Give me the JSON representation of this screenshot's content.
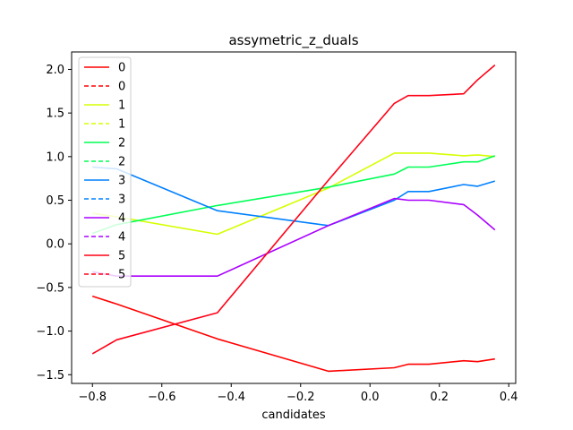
{
  "chart_data": {
    "type": "line",
    "title": "assymetric_z_duals",
    "xlabel": "candidates",
    "ylabel": "",
    "xlim": [
      -0.86,
      0.42
    ],
    "ylim": [
      -1.6,
      2.2
    ],
    "xticks": [
      -0.8,
      -0.6,
      -0.4,
      -0.2,
      0.0,
      0.2,
      0.4
    ],
    "xtick_labels": [
      "−0.8",
      "−0.6",
      "−0.4",
      "−0.2",
      "0.0",
      "0.2",
      "0.4"
    ],
    "yticks": [
      -1.5,
      -1.0,
      -0.5,
      0.0,
      0.5,
      1.0,
      1.5,
      2.0
    ],
    "ytick_labels": [
      "−1.5",
      "−1.0",
      "−0.5",
      "0.0",
      "0.5",
      "1.0",
      "1.5",
      "2.0"
    ],
    "grid": false,
    "legend": {
      "placement": "top-left",
      "entries": [
        {
          "label": "0",
          "color": "#ff0000",
          "style": "solid"
        },
        {
          "label": "0",
          "color": "#ff0000",
          "style": "dashed"
        },
        {
          "label": "1",
          "color": "#d5ff00",
          "style": "solid"
        },
        {
          "label": "1",
          "color": "#d5ff00",
          "style": "dashed"
        },
        {
          "label": "2",
          "color": "#00ff55",
          "style": "solid"
        },
        {
          "label": "2",
          "color": "#00ff55",
          "style": "dashed"
        },
        {
          "label": "3",
          "color": "#0080ff",
          "style": "solid"
        },
        {
          "label": "3",
          "color": "#0080ff",
          "style": "dashed"
        },
        {
          "label": "4",
          "color": "#aa00ff",
          "style": "solid"
        },
        {
          "label": "4",
          "color": "#aa00ff",
          "style": "dashed"
        },
        {
          "label": "5",
          "color": "#ff0015",
          "style": "solid"
        },
        {
          "label": "5",
          "color": "#ff0015",
          "style": "dashed"
        }
      ]
    },
    "series": [
      {
        "name": "0",
        "color": "#ff0000",
        "style": "solid",
        "x": [
          -0.8,
          -0.73,
          -0.44,
          -0.12,
          0.07,
          0.11,
          0.17,
          0.27,
          0.31,
          0.36
        ],
        "y": [
          -0.6,
          -0.69,
          -1.09,
          -1.46,
          -1.42,
          -1.38,
          -1.38,
          -1.34,
          -1.35,
          -1.32
        ]
      },
      {
        "name": "1",
        "color": "#d5ff00",
        "style": "solid",
        "x": [
          -0.8,
          -0.73,
          -0.44,
          -0.12,
          0.07,
          0.11,
          0.17,
          0.27,
          0.31,
          0.36
        ],
        "y": [
          0.35,
          0.31,
          0.11,
          0.64,
          1.04,
          1.04,
          1.04,
          1.01,
          1.02,
          1.0
        ]
      },
      {
        "name": "2",
        "color": "#00ff55",
        "style": "solid",
        "x": [
          -0.8,
          -0.73,
          -0.44,
          -0.12,
          0.07,
          0.11,
          0.17,
          0.27,
          0.31,
          0.36
        ],
        "y": [
          0.12,
          0.22,
          0.44,
          0.65,
          0.8,
          0.88,
          0.88,
          0.94,
          0.94,
          1.01
        ]
      },
      {
        "name": "3",
        "color": "#0080ff",
        "style": "solid",
        "x": [
          -0.8,
          -0.73,
          -0.44,
          -0.12,
          0.07,
          0.11,
          0.17,
          0.27,
          0.31,
          0.36
        ],
        "y": [
          0.88,
          0.86,
          0.38,
          0.21,
          0.5,
          0.6,
          0.6,
          0.68,
          0.66,
          0.72
        ]
      },
      {
        "name": "4",
        "color": "#aa00ff",
        "style": "solid",
        "x": [
          -0.8,
          -0.73,
          -0.44,
          -0.12,
          0.07,
          0.11,
          0.17,
          0.27,
          0.31,
          0.36
        ],
        "y": [
          -0.32,
          -0.37,
          -0.37,
          0.21,
          0.52,
          0.5,
          0.5,
          0.45,
          0.33,
          0.16
        ]
      },
      {
        "name": "5",
        "color": "#ff0015",
        "style": "solid",
        "x": [
          -0.8,
          -0.73,
          -0.44,
          -0.12,
          0.07,
          0.11,
          0.17,
          0.27,
          0.31,
          0.36
        ],
        "y": [
          -1.26,
          -1.1,
          -0.79,
          0.73,
          1.61,
          1.7,
          1.7,
          1.72,
          1.88,
          2.05
        ]
      }
    ]
  }
}
